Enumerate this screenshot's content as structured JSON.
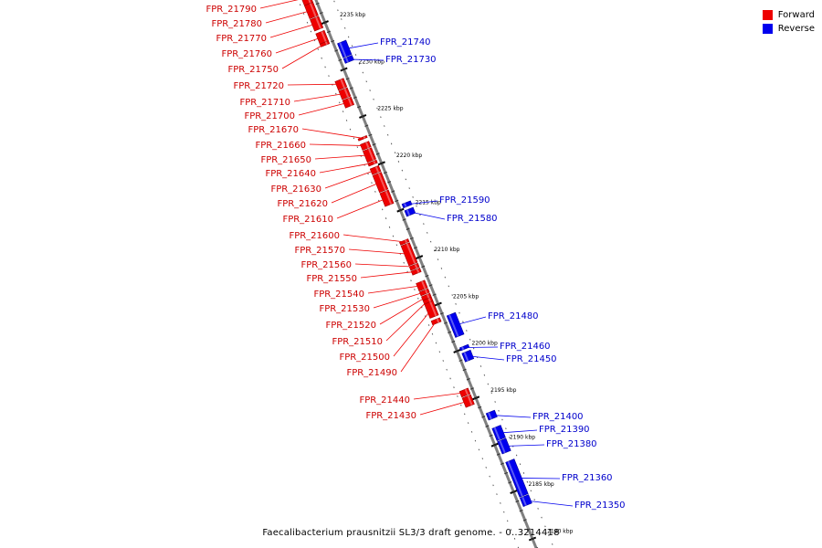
{
  "legend": {
    "items": [
      {
        "label": "Forward",
        "color": "#ee0000"
      },
      {
        "label": "Reverse",
        "color": "#0000ee"
      }
    ]
  },
  "caption": "Faecalibacterium prausnitzii SL3/3 draft genome. - 0..3214418",
  "colors": {
    "forward": "#ee0000",
    "forward_dark": "#a00000",
    "reverse": "#0000ee",
    "reverse_dark": "#00009a",
    "backbone": "#808080"
  },
  "ticks": [
    {
      "kbp": 2235,
      "label": "2235 kbp"
    },
    {
      "kbp": 2230,
      "label": "2230 kbp"
    },
    {
      "kbp": 2225,
      "label": "2225 kbp"
    },
    {
      "kbp": 2220,
      "label": "2220 kbp"
    },
    {
      "kbp": 2215,
      "label": "2215 kbp"
    },
    {
      "kbp": 2210,
      "label": "2210 kbp"
    },
    {
      "kbp": 2205,
      "label": "2205 kbp"
    },
    {
      "kbp": 2200,
      "label": "2200 kbp"
    },
    {
      "kbp": 2195,
      "label": "2195 kbp"
    },
    {
      "kbp": 2190,
      "label": "2190 kbp"
    },
    {
      "kbp": 2185,
      "label": "2185 kbp"
    },
    {
      "kbp": 2180,
      "label": "2180 kbp"
    }
  ],
  "forward_genes": [
    {
      "name": "FPR_21790",
      "start": 2238.6,
      "end": 2237.3
    },
    {
      "name": "FPR_21780",
      "start": 2237.3,
      "end": 2235.9
    },
    {
      "name": "FPR_21770",
      "start": 2235.8,
      "end": 2234.6
    },
    {
      "name": "FPR_21760",
      "start": 2234.3,
      "end": 2233.2
    },
    {
      "name": "FPR_21750",
      "start": 2233.2,
      "end": 2232.9
    },
    {
      "name": "FPR_21720",
      "start": 2229.2,
      "end": 2228.3
    },
    {
      "name": "FPR_21710",
      "start": 2228.2,
      "end": 2227.3
    },
    {
      "name": "FPR_21700",
      "start": 2227.2,
      "end": 2226.4
    },
    {
      "name": "FPR_21670",
      "start": 2223.1,
      "end": 2222.9
    },
    {
      "name": "FPR_21660",
      "start": 2222.5,
      "end": 2221.9
    },
    {
      "name": "FPR_21650",
      "start": 2221.8,
      "end": 2220.6
    },
    {
      "name": "FPR_21640",
      "start": 2220.5,
      "end": 2220.2
    },
    {
      "name": "FPR_21630",
      "start": 2219.9,
      "end": 2219.3
    },
    {
      "name": "FPR_21620",
      "start": 2219.2,
      "end": 2217.4
    },
    {
      "name": "FPR_21610",
      "start": 2217.3,
      "end": 2215.9
    },
    {
      "name": "FPR_21600",
      "start": 2212.1,
      "end": 2211.8
    },
    {
      "name": "FPR_21570",
      "start": 2211.7,
      "end": 2209.6
    },
    {
      "name": "FPR_21560",
      "start": 2209.5,
      "end": 2209.1
    },
    {
      "name": "FPR_21550",
      "start": 2209.0,
      "end": 2208.6
    },
    {
      "name": "FPR_21540",
      "start": 2207.7,
      "end": 2206.9
    },
    {
      "name": "FPR_21530",
      "start": 2206.8,
      "end": 2206.4
    },
    {
      "name": "FPR_21520",
      "start": 2206.3,
      "end": 2205.9
    },
    {
      "name": "FPR_21510",
      "start": 2205.9,
      "end": 2205.5
    },
    {
      "name": "FPR_21500",
      "start": 2205.5,
      "end": 2204.0
    },
    {
      "name": "FPR_21490",
      "start": 2203.7,
      "end": 2203.3
    },
    {
      "name": "FPR_21440",
      "start": 2196.2,
      "end": 2195.6
    },
    {
      "name": "FPR_21430",
      "start": 2195.5,
      "end": 2194.5
    }
  ],
  "reverse_genes": [
    {
      "name": "FPR_21740",
      "start": 2232.6,
      "end": 2231.1
    },
    {
      "name": "FPR_21730",
      "start": 2231.0,
      "end": 2230.5
    },
    {
      "name": "FPR_21590",
      "start": 2215.5,
      "end": 2215.1
    },
    {
      "name": "FPR_21580",
      "start": 2214.8,
      "end": 2214.2
    },
    {
      "name": "FPR_21480",
      "start": 2203.6,
      "end": 2201.3
    },
    {
      "name": "FPR_21460",
      "start": 2200.2,
      "end": 2199.9
    },
    {
      "name": "FPR_21450",
      "start": 2199.6,
      "end": 2198.7
    },
    {
      "name": "FPR_21400",
      "start": 2193.2,
      "end": 2192.5
    },
    {
      "name": "FPR_21390",
      "start": 2191.6,
      "end": 2190.3
    },
    {
      "name": "FPR_21380",
      "start": 2190.2,
      "end": 2188.9
    },
    {
      "name": "FPR_21360",
      "start": 2188.0,
      "end": 2184.3
    },
    {
      "name": "FPR_21350",
      "start": 2184.2,
      "end": 2183.3
    }
  ]
}
